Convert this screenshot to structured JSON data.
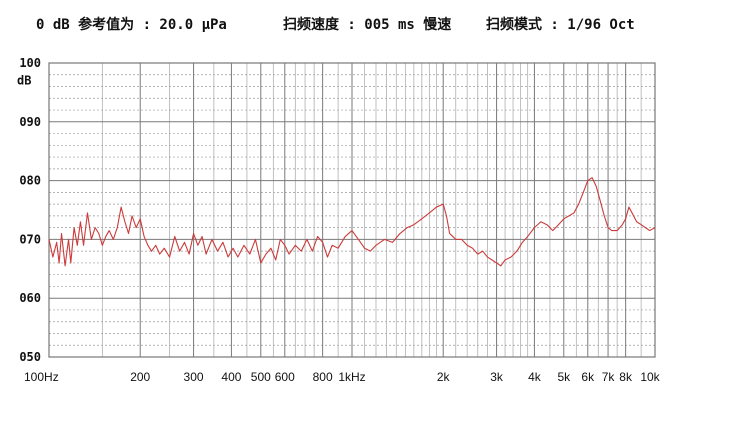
{
  "header": {
    "reference": "0 dB 参考值为 : 20.0 μPa",
    "sweep_speed": "扫频速度 : 005 ms 慢速",
    "sweep_mode": "扫频模式 : 1/96  Oct"
  },
  "chart_data": {
    "type": "line",
    "title": "",
    "xlabel": "",
    "ylabel": "dB",
    "x_scale": "log",
    "xlim": [
      100,
      10000
    ],
    "ylim": [
      50,
      100
    ],
    "grid": true,
    "y_ticks": [
      {
        "value": 100,
        "label": "100"
      },
      {
        "value": 90,
        "label": "090"
      },
      {
        "value": 80,
        "label": "080"
      },
      {
        "value": 70,
        "label": "070"
      },
      {
        "value": 60,
        "label": "060"
      },
      {
        "value": 50,
        "label": "050"
      }
    ],
    "x_ticks": [
      {
        "value": 100,
        "label": "100Hz"
      },
      {
        "value": 200,
        "label": "200"
      },
      {
        "value": 300,
        "label": "300"
      },
      {
        "value": 400,
        "label": "400"
      },
      {
        "value": 500,
        "label": "500"
      },
      {
        "value": 600,
        "label": "600"
      },
      {
        "value": 800,
        "label": "800"
      },
      {
        "value": 1000,
        "label": "1kHz"
      },
      {
        "value": 2000,
        "label": "2k"
      },
      {
        "value": 3000,
        "label": "3k"
      },
      {
        "value": 4000,
        "label": "4k"
      },
      {
        "value": 5000,
        "label": "5k"
      },
      {
        "value": 6000,
        "label": "6k"
      },
      {
        "value": 7000,
        "label": "7k"
      },
      {
        "value": 8000,
        "label": "8k"
      },
      {
        "value": 10000,
        "label": "10k"
      }
    ],
    "line_color": "#cc3b3b",
    "series": [
      {
        "x": [
          100,
          103,
          106,
          108,
          110,
          113,
          116,
          118,
          121,
          124,
          127,
          130,
          134,
          138,
          142,
          146,
          150,
          154,
          158,
          163,
          168,
          173,
          178,
          183,
          188,
          194,
          200,
          206,
          212,
          218,
          225,
          232,
          240,
          250,
          260,
          270,
          280,
          290,
          300,
          310,
          320,
          330,
          345,
          360,
          375,
          390,
          405,
          420,
          440,
          460,
          480,
          500,
          520,
          540,
          560,
          580,
          600,
          620,
          650,
          680,
          710,
          740,
          770,
          800,
          830,
          860,
          900,
          950,
          1000,
          1050,
          1100,
          1150,
          1200,
          1280,
          1360,
          1440,
          1520,
          1600,
          1700,
          1800,
          1900,
          2000,
          2050,
          2100,
          2150,
          2200,
          2300,
          2400,
          2500,
          2600,
          2700,
          2800,
          2900,
          3000,
          3100,
          3200,
          3350,
          3500,
          3650,
          3800,
          4000,
          4200,
          4400,
          4600,
          4800,
          5000,
          5200,
          5400,
          5600,
          5800,
          6000,
          6200,
          6400,
          6600,
          6800,
          7000,
          7200,
          7500,
          7800,
          8000,
          8200,
          8400,
          8700,
          9000,
          9300,
          9600,
          10000
        ],
        "y": [
          70.0,
          67.0,
          69.5,
          66.0,
          71.0,
          65.5,
          70.0,
          66.0,
          72.0,
          69.0,
          73.0,
          69.0,
          74.5,
          70.0,
          72.0,
          71.0,
          69.0,
          70.5,
          71.5,
          70.0,
          72.0,
          75.5,
          73.0,
          71.0,
          74.0,
          72.0,
          73.5,
          70.5,
          69.0,
          68.0,
          69.0,
          67.5,
          68.5,
          67.0,
          70.5,
          68.0,
          69.5,
          67.5,
          71.0,
          69.0,
          70.5,
          67.5,
          70.0,
          68.0,
          69.5,
          67.0,
          68.5,
          67.0,
          69.0,
          67.5,
          70.0,
          66.0,
          67.5,
          68.5,
          66.5,
          70.0,
          69.0,
          67.5,
          69.0,
          68.0,
          70.0,
          68.0,
          70.5,
          69.5,
          67.0,
          69.0,
          68.5,
          70.5,
          71.5,
          70.0,
          68.5,
          68.0,
          69.0,
          70.0,
          69.5,
          71.0,
          72.0,
          72.5,
          73.5,
          74.5,
          75.5,
          76.0,
          74.0,
          71.0,
          70.5,
          70.0,
          70.0,
          69.0,
          68.5,
          67.5,
          68.0,
          67.0,
          66.5,
          66.0,
          65.5,
          66.5,
          67.0,
          68.0,
          69.5,
          70.5,
          72.0,
          73.0,
          72.5,
          71.5,
          72.5,
          73.5,
          74.0,
          74.5,
          76.0,
          78.0,
          80.0,
          80.5,
          79.0,
          76.5,
          74.0,
          72.0,
          71.5,
          71.5,
          72.5,
          73.5,
          75.5,
          74.5,
          73.0,
          72.5,
          72.0,
          71.5,
          72.0
        ]
      }
    ]
  }
}
